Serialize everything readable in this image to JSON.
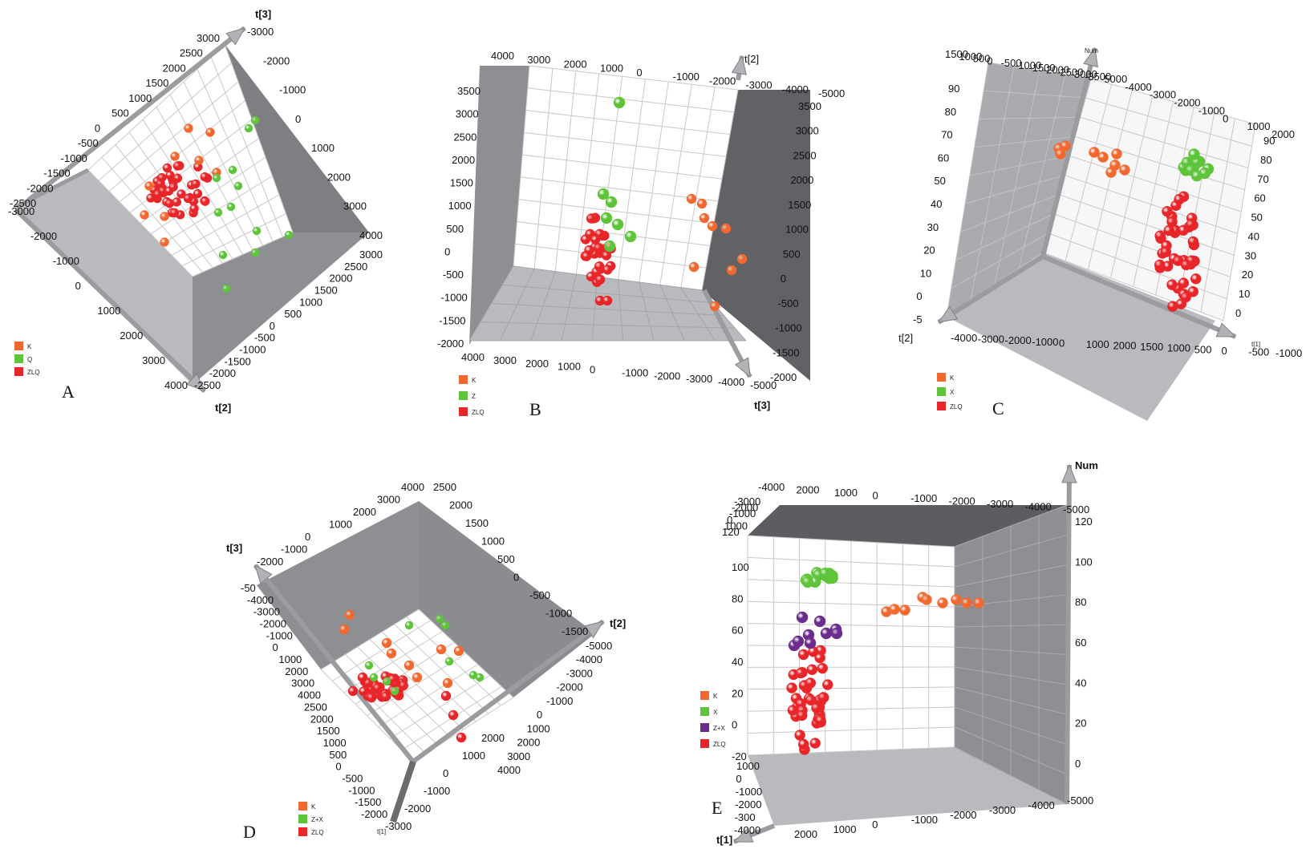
{
  "colors": {
    "K": "#f2682e",
    "Q": "#5ec43a",
    "Z": "#5ec43a",
    "X": "#5ec43a",
    "ZX": "#6b2c8c",
    "ZLQ": "#e8262a",
    "wall": "#8d8f93",
    "wallDark": "#606266",
    "floor": "#b8babd",
    "grid": "#c8c8c8"
  },
  "chart_data": [
    {
      "panel": "A",
      "type": "scatter",
      "axis_names": [
        "t[3]",
        "t[2]"
      ],
      "legend": [
        {
          "label": "K",
          "color": "#f2682e"
        },
        {
          "label": "Q",
          "color": "#5ec43a"
        },
        {
          "label": "ZLQ",
          "color": "#e8262a"
        }
      ],
      "tick_labels": {
        "upper_left": [
          "3000",
          "2500",
          "2000",
          "1500",
          "1000",
          "500",
          "0",
          "-500",
          "-1000",
          "-1500",
          "-2000",
          "-2500"
        ],
        "upper_right": [
          "-3000",
          "-2000",
          "-1000",
          "0",
          "1000",
          "2000",
          "3000",
          "4000"
        ],
        "right_lower": [
          "3000",
          "2500",
          "2000",
          "1500",
          "1000",
          "500",
          "0",
          "-500",
          "-1000",
          "-1500",
          "-2000",
          "-2500"
        ],
        "left_lower": [
          "-3000",
          "-2000",
          "-1000",
          "0",
          "1000",
          "2000",
          "3000",
          "4000"
        ]
      }
    },
    {
      "panel": "B",
      "type": "scatter",
      "axis_names": [
        "t[2]",
        "t[3]"
      ],
      "legend": [
        {
          "label": "K",
          "color": "#f2682e"
        },
        {
          "label": "Z",
          "color": "#5ec43a"
        },
        {
          "label": "ZLQ",
          "color": "#e8262a"
        }
      ],
      "tick_labels": {
        "top": [
          "4000",
          "3000",
          "2000",
          "1000",
          "0",
          "-1000",
          "-2000",
          "-3000",
          "-4000",
          "-5000"
        ],
        "left": [
          "3500",
          "3000",
          "2500",
          "2000",
          "1500",
          "1000",
          "500",
          "0",
          "-500",
          "-1000",
          "-1500",
          "-2000"
        ],
        "right": [
          "3500",
          "3000",
          "2500",
          "2000",
          "1500",
          "1000",
          "500",
          "0",
          "-500",
          "-1000",
          "-1500",
          "-2000"
        ],
        "bottom": [
          "4000",
          "3000",
          "2000",
          "1000",
          "0",
          "-1000",
          "-2000",
          "-3000",
          "-4000",
          "-5000"
        ]
      }
    },
    {
      "panel": "C",
      "type": "scatter",
      "axis_names": [
        "Num",
        "t[2]",
        "t[1]"
      ],
      "legend": [
        {
          "label": "K",
          "color": "#f2682e"
        },
        {
          "label": "X",
          "color": "#5ec43a"
        },
        {
          "label": "ZLQ",
          "color": "#e8262a"
        }
      ],
      "tick_labels": {
        "top_left": [
          "1500",
          "1000",
          "500",
          "0",
          "-500",
          "-1000",
          "-1500",
          "-2000",
          "-2500",
          "-3000",
          "-3500"
        ],
        "top_right": [
          "-5000",
          "-4000",
          "-3000",
          "-2000",
          "-1000",
          "0",
          "1000",
          "2000"
        ],
        "left": [
          "90",
          "80",
          "70",
          "60",
          "50",
          "40",
          "30",
          "20",
          "10",
          "0",
          "-5"
        ],
        "right": [
          "90",
          "80",
          "70",
          "60",
          "50",
          "40",
          "30",
          "20",
          "10",
          "0"
        ],
        "bottom": [
          "-4000",
          "-3000",
          "-2000",
          "-1000",
          "0",
          "1000",
          "2000",
          "1500",
          "1000",
          "500",
          "0",
          "-500",
          "-1000"
        ]
      }
    },
    {
      "panel": "D",
      "type": "scatter",
      "axis_names": [
        "t[3]",
        "t[2]",
        "t[1]"
      ],
      "legend": [
        {
          "label": "K",
          "color": "#f2682e"
        },
        {
          "label": "Z+X",
          "color": "#5ec43a"
        },
        {
          "label": "ZLQ",
          "color": "#e8262a"
        }
      ],
      "tick_labels": {
        "top": [
          "4000",
          "3000",
          "2000",
          "1000",
          "0",
          "-1000",
          "-2000"
        ],
        "top_right": [
          "2500",
          "2000",
          "1500",
          "1000",
          "500",
          "0",
          "-500",
          "-1000",
          "-1500"
        ],
        "left": [
          "-50",
          "-4000",
          "-3000",
          "-2000",
          "-1000",
          "0",
          "1000",
          "2000",
          "3000",
          "4000",
          "2500",
          "2000",
          "1500",
          "1000",
          "500",
          "0",
          "-500",
          "-1000",
          "-1500",
          "-2000"
        ],
        "right": [
          "-5000",
          "-4000",
          "-3000",
          "-2000",
          "-1000",
          "0",
          "1000",
          "2000",
          "3000",
          "4000"
        ],
        "bottom": [
          "-3000",
          "-2000",
          "-1000",
          "0",
          "1000",
          "2000"
        ]
      }
    },
    {
      "panel": "E",
      "type": "scatter",
      "axis_names": [
        "Num",
        "t[1]"
      ],
      "legend": [
        {
          "label": "K",
          "color": "#f2682e"
        },
        {
          "label": "X",
          "color": "#5ec43a"
        },
        {
          "label": "Z+X",
          "color": "#6b2c8c"
        },
        {
          "label": "ZLQ",
          "color": "#e8262a"
        }
      ],
      "tick_labels": {
        "top": [
          "-4000",
          "2000",
          "1000",
          "0",
          "-1000",
          "-2000",
          "-3000",
          "-4000",
          "-5000"
        ],
        "left_top": [
          "-3000",
          "-2000",
          "-1000",
          "0",
          "1000",
          "120"
        ],
        "left": [
          "100",
          "80",
          "60",
          "40",
          "20",
          "0",
          "-20"
        ],
        "right": [
          "120",
          "100",
          "80",
          "60",
          "40",
          "20",
          "0"
        ],
        "bottom": [
          "2000",
          "1000",
          "0",
          "-1000",
          "-2000",
          "-3000",
          "-4000",
          "-5000"
        ],
        "bottom_left": [
          "1000",
          "0",
          "-1000",
          "-2000",
          "-300",
          "-4000"
        ]
      }
    }
  ],
  "labels": {
    "A": "A",
    "B": "B",
    "C": "C",
    "D": "D",
    "E": "E"
  }
}
